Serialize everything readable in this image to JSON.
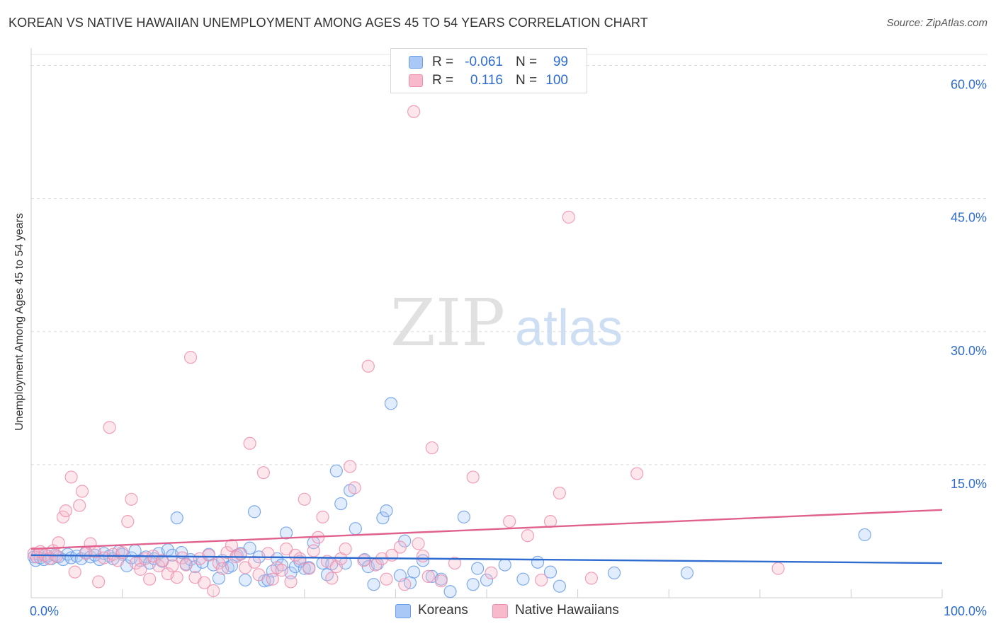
{
  "title": "KOREAN VS NATIVE HAWAIIAN UNEMPLOYMENT AMONG AGES 45 TO 54 YEARS CORRELATION CHART",
  "source": "Source: ZipAtlas.com",
  "watermark": {
    "zip": "ZIP",
    "atlas": "atlas"
  },
  "legend": {
    "r_label": "R =",
    "n_label": "N =",
    "rows": [
      {
        "r": "-0.061",
        "n": "99",
        "color": "#a9c8f5"
      },
      {
        "r": "0.116",
        "n": "100",
        "color": "#f7b9cb"
      }
    ]
  },
  "chart_data": {
    "type": "scatter",
    "title": "KOREAN VS NATIVE HAWAIIAN UNEMPLOYMENT AMONG AGES 45 TO 54 YEARS CORRELATION CHART",
    "xlabel": "",
    "ylabel": "Unemployment Among Ages 45 to 54 years",
    "xlim": [
      0,
      100
    ],
    "ylim": [
      0,
      61
    ],
    "x_tick_labels": [
      {
        "value": 0,
        "label": "0.0%"
      },
      {
        "value": 100,
        "label": "100.0%"
      }
    ],
    "y_tick_labels": [
      {
        "value": 15,
        "label": "15.0%"
      },
      {
        "value": 30,
        "label": "30.0%"
      },
      {
        "value": 45,
        "label": "45.0%"
      },
      {
        "value": 60,
        "label": "60.0%"
      }
    ],
    "grid": true,
    "legend_position": "top-center",
    "series": [
      {
        "name": "Koreans",
        "color": "#6a9ee8",
        "fill": "#a9c8f5",
        "line_color": "#2f6cd0",
        "trend": {
          "x": [
            0,
            100
          ],
          "y": [
            4.8,
            3.9
          ]
        },
        "points": [
          [
            0.3,
            4.6
          ],
          [
            0.5,
            4.2
          ],
          [
            0.8,
            4.9
          ],
          [
            1.0,
            4.5
          ],
          [
            1.4,
            4.3
          ],
          [
            1.8,
            4.7
          ],
          [
            2.2,
            4.4
          ],
          [
            2.6,
            4.8
          ],
          [
            3.0,
            4.6
          ],
          [
            3.5,
            4.3
          ],
          [
            4.0,
            4.9
          ],
          [
            4.4,
            4.5
          ],
          [
            5.0,
            4.7
          ],
          [
            5.5,
            4.4
          ],
          [
            6.0,
            5.1
          ],
          [
            6.5,
            4.6
          ],
          [
            7.0,
            4.8
          ],
          [
            7.5,
            4.3
          ],
          [
            8.0,
            5.0
          ],
          [
            8.6,
            4.7
          ],
          [
            9.0,
            4.4
          ],
          [
            9.6,
            5.2
          ],
          [
            10.0,
            4.9
          ],
          [
            10.5,
            3.6
          ],
          [
            11.0,
            4.5
          ],
          [
            11.4,
            5.3
          ],
          [
            12.0,
            4.2
          ],
          [
            12.6,
            4.6
          ],
          [
            13.0,
            3.9
          ],
          [
            13.5,
            4.4
          ],
          [
            14.0,
            5.0
          ],
          [
            14.4,
            4.1
          ],
          [
            15.0,
            5.4
          ],
          [
            15.5,
            4.8
          ],
          [
            16.0,
            9.0
          ],
          [
            16.5,
            5.1
          ],
          [
            17.0,
            3.8
          ],
          [
            17.5,
            4.3
          ],
          [
            18.0,
            3.5
          ],
          [
            18.8,
            4.0
          ],
          [
            19.5,
            4.9
          ],
          [
            20.0,
            3.7
          ],
          [
            20.6,
            2.2
          ],
          [
            21.0,
            4.2
          ],
          [
            21.6,
            3.4
          ],
          [
            22.0,
            3.6
          ],
          [
            22.6,
            4.8
          ],
          [
            23.0,
            5.0
          ],
          [
            23.5,
            2.0
          ],
          [
            24.0,
            5.6
          ],
          [
            24.5,
            9.7
          ],
          [
            25.0,
            4.6
          ],
          [
            25.6,
            1.9
          ],
          [
            26.0,
            2.0
          ],
          [
            26.5,
            3.0
          ],
          [
            27.0,
            4.4
          ],
          [
            27.5,
            3.7
          ],
          [
            28.0,
            7.3
          ],
          [
            28.5,
            2.8
          ],
          [
            29.0,
            3.5
          ],
          [
            29.5,
            4.1
          ],
          [
            30.0,
            3.3
          ],
          [
            30.5,
            3.4
          ],
          [
            31.0,
            6.2
          ],
          [
            32.0,
            3.9
          ],
          [
            32.5,
            2.6
          ],
          [
            33.0,
            3.8
          ],
          [
            33.5,
            14.3
          ],
          [
            34.0,
            10.6
          ],
          [
            34.5,
            3.9
          ],
          [
            35.0,
            12.1
          ],
          [
            35.6,
            7.8
          ],
          [
            36.6,
            4.3
          ],
          [
            37.0,
            3.5
          ],
          [
            37.6,
            1.5
          ],
          [
            38.0,
            3.8
          ],
          [
            38.6,
            9.0
          ],
          [
            39.0,
            9.8
          ],
          [
            39.5,
            21.9
          ],
          [
            40.5,
            2.5
          ],
          [
            41.0,
            6.4
          ],
          [
            41.6,
            1.7
          ],
          [
            42.0,
            2.9
          ],
          [
            43.0,
            4.2
          ],
          [
            44.0,
            2.4
          ],
          [
            45.0,
            2.1
          ],
          [
            46.0,
            0.7
          ],
          [
            47.5,
            9.1
          ],
          [
            48.5,
            1.5
          ],
          [
            49.0,
            3.3
          ],
          [
            50.0,
            2.0
          ],
          [
            52.0,
            3.7
          ],
          [
            54.0,
            2.1
          ],
          [
            55.6,
            4.0
          ],
          [
            57.0,
            2.9
          ],
          [
            58.0,
            1.3
          ],
          [
            64.0,
            2.8
          ],
          [
            72.0,
            2.8
          ],
          [
            91.5,
            7.1
          ]
        ]
      },
      {
        "name": "Native Hawaiians",
        "color": "#ee8fae",
        "fill": "#f7b9cb",
        "line_color": "#e0608e",
        "trend": {
          "x": [
            0,
            100
          ],
          "y": [
            5.5,
            9.9
          ]
        },
        "points": [
          [
            0.3,
            5.0
          ],
          [
            0.6,
            4.6
          ],
          [
            1.0,
            5.2
          ],
          [
            1.5,
            4.8
          ],
          [
            2.0,
            4.4
          ],
          [
            2.4,
            5.3
          ],
          [
            2.8,
            4.7
          ],
          [
            3.0,
            6.2
          ],
          [
            3.5,
            9.1
          ],
          [
            3.8,
            9.8
          ],
          [
            4.4,
            13.6
          ],
          [
            4.8,
            2.9
          ],
          [
            5.3,
            10.4
          ],
          [
            5.6,
            12.0
          ],
          [
            6.0,
            5.0
          ],
          [
            6.5,
            6.1
          ],
          [
            7.0,
            5.2
          ],
          [
            7.4,
            1.8
          ],
          [
            8.0,
            4.5
          ],
          [
            8.6,
            19.2
          ],
          [
            9.0,
            4.9
          ],
          [
            9.5,
            4.2
          ],
          [
            10.0,
            5.1
          ],
          [
            10.6,
            8.6
          ],
          [
            11.0,
            11.1
          ],
          [
            11.5,
            3.9
          ],
          [
            12.0,
            3.2
          ],
          [
            12.5,
            4.4
          ],
          [
            13.0,
            2.1
          ],
          [
            13.4,
            4.7
          ],
          [
            14.0,
            3.6
          ],
          [
            14.4,
            4.2
          ],
          [
            15.0,
            2.7
          ],
          [
            15.5,
            3.6
          ],
          [
            16.0,
            2.3
          ],
          [
            16.6,
            4.5
          ],
          [
            17.0,
            3.7
          ],
          [
            17.5,
            27.1
          ],
          [
            18.0,
            2.3
          ],
          [
            18.5,
            4.4
          ],
          [
            19.0,
            1.7
          ],
          [
            19.5,
            4.8
          ],
          [
            20.0,
            0.8
          ],
          [
            20.6,
            3.9
          ],
          [
            21.0,
            3.3
          ],
          [
            21.5,
            5.1
          ],
          [
            22.0,
            5.9
          ],
          [
            22.5,
            4.6
          ],
          [
            23.0,
            4.9
          ],
          [
            23.5,
            3.4
          ],
          [
            24.0,
            17.4
          ],
          [
            24.5,
            4.0
          ],
          [
            25.0,
            2.6
          ],
          [
            25.5,
            14.1
          ],
          [
            26.0,
            5.0
          ],
          [
            26.5,
            2.1
          ],
          [
            27.0,
            3.4
          ],
          [
            27.5,
            3.1
          ],
          [
            28.0,
            5.5
          ],
          [
            28.5,
            1.8
          ],
          [
            29.0,
            4.8
          ],
          [
            29.5,
            4.4
          ],
          [
            30.0,
            11.1
          ],
          [
            30.5,
            3.3
          ],
          [
            31.0,
            5.3
          ],
          [
            31.5,
            6.8
          ],
          [
            32.0,
            9.1
          ],
          [
            32.5,
            4.1
          ],
          [
            33.0,
            2.2
          ],
          [
            33.5,
            3.5
          ],
          [
            34.0,
            4.4
          ],
          [
            34.5,
            5.5
          ],
          [
            35.0,
            14.8
          ],
          [
            35.5,
            12.4
          ],
          [
            36.5,
            4.2
          ],
          [
            37.0,
            26.1
          ],
          [
            37.8,
            3.7
          ],
          [
            38.5,
            4.4
          ],
          [
            39.0,
            2.1
          ],
          [
            39.6,
            4.8
          ],
          [
            40.5,
            5.7
          ],
          [
            41.0,
            1.5
          ],
          [
            42.0,
            54.8
          ],
          [
            42.5,
            6.1
          ],
          [
            43.0,
            4.7
          ],
          [
            43.6,
            2.4
          ],
          [
            44.0,
            16.9
          ],
          [
            45.0,
            1.9
          ],
          [
            46.5,
            3.9
          ],
          [
            48.5,
            13.6
          ],
          [
            50.5,
            2.8
          ],
          [
            52.5,
            8.6
          ],
          [
            54.5,
            7.0
          ],
          [
            56.0,
            2.0
          ],
          [
            57.0,
            8.6
          ],
          [
            58.0,
            11.8
          ],
          [
            59.0,
            42.9
          ],
          [
            61.5,
            2.2
          ],
          [
            66.5,
            14.0
          ],
          [
            82.0,
            3.3
          ]
        ]
      }
    ]
  }
}
